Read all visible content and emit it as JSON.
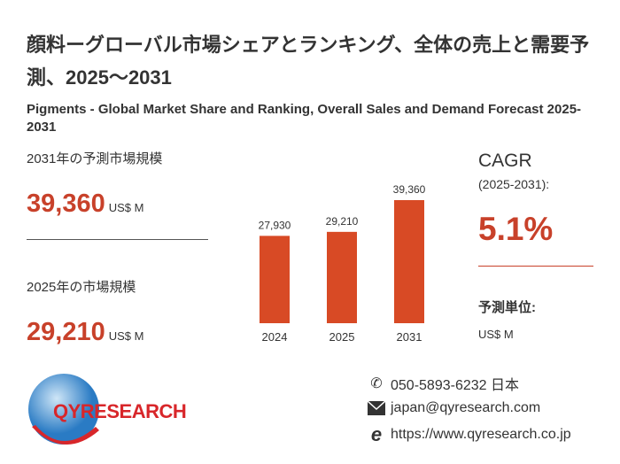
{
  "title_jp": "顔料ーグローバル市場シェアとランキング、全体の売上と需要予測、2025～2031",
  "title_en": "Pigments - Global Market Share and Ranking, Overall Sales and Demand Forecast 2025-2031",
  "forecast": {
    "label": "2031年の予測市場規模",
    "value": "39,360",
    "unit": "US$ M"
  },
  "current": {
    "label": "2025年の市場規模",
    "value": "29,210",
    "unit": "US$ M"
  },
  "cagr": {
    "label": "CAGR",
    "period": "(2025-2031):",
    "value": "5.1%"
  },
  "forecast_unit": {
    "label": "予測単位:",
    "value": "US$ M"
  },
  "chart_data": {
    "type": "bar",
    "categories": [
      "2024",
      "2025",
      "2031"
    ],
    "values": [
      27930,
      29210,
      39360
    ],
    "value_labels": [
      "27,930",
      "29,210",
      "39,360"
    ],
    "ylim": [
      0,
      39360
    ],
    "color": "#d84a25"
  },
  "logo": {
    "text": "QYRESEARCH"
  },
  "contact": {
    "phone": "050-5893-6232 日本",
    "email": "japan@qyresearch.com",
    "website": "https://www.qyresearch.co.jp"
  },
  "colors": {
    "accent": "#c8412a",
    "bar": "#d84a25"
  }
}
